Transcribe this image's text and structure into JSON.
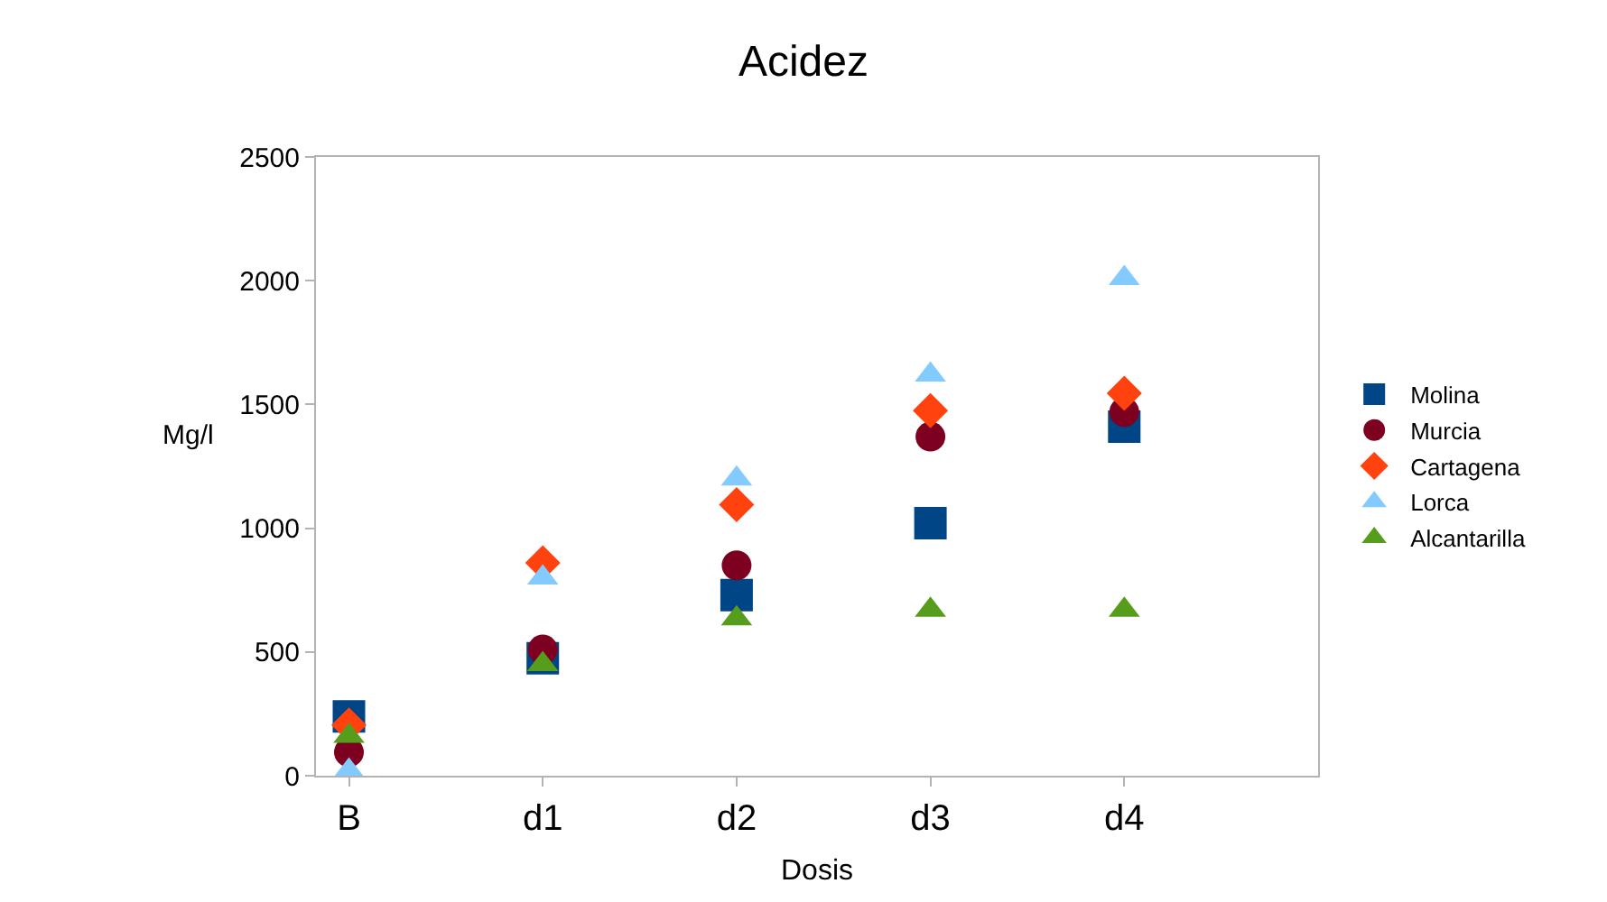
{
  "chart_data": {
    "type": "scatter",
    "title": "Acidez",
    "xlabel": "Dosis",
    "ylabel": "Mg/l",
    "categories": [
      "B",
      "d1",
      "d2",
      "d3",
      "d4"
    ],
    "ylim": [
      0,
      2500
    ],
    "yticks": [
      0,
      500,
      1000,
      1500,
      2000,
      2500
    ],
    "grid": false,
    "legend": "right",
    "series": [
      {
        "name": "Molina",
        "color": "#004586",
        "marker": "square",
        "values": [
          240,
          475,
          730,
          1020,
          1410
        ]
      },
      {
        "name": "Murcia",
        "color": "#7e0021",
        "marker": "circle",
        "values": [
          95,
          510,
          850,
          1370,
          1470
        ]
      },
      {
        "name": "Cartagena",
        "color": "#ff420e",
        "marker": "diamond",
        "values": [
          205,
          860,
          1095,
          1475,
          1545
        ]
      },
      {
        "name": "Lorca",
        "color": "#83caff",
        "marker": "triangle",
        "values": [
          20,
          800,
          1200,
          1620,
          2010
        ]
      },
      {
        "name": "Alcantarilla",
        "color": "#579d1c",
        "marker": "triangle",
        "values": [
          160,
          450,
          635,
          670,
          670
        ]
      }
    ]
  }
}
